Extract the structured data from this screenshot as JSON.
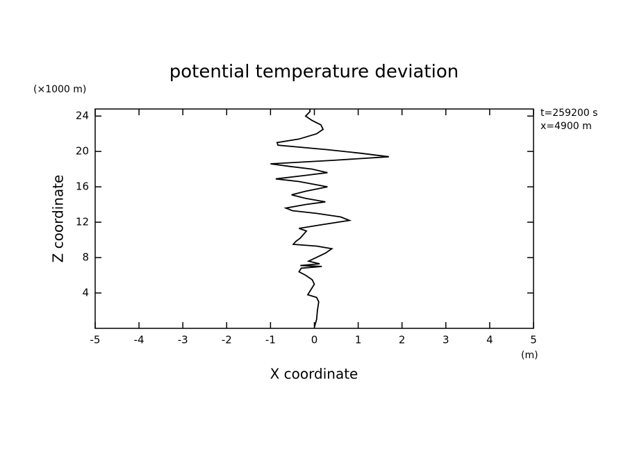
{
  "chart_data": {
    "type": "line",
    "title": "potential temperature deviation",
    "x_label": "X coordinate",
    "y_label": "Z coordinate",
    "x_unit": "(m)",
    "y_unit": "(×1000 m)",
    "annotations": [
      "t=259200 s",
      "x=4900 m"
    ],
    "color": "#000000",
    "xlim": [
      -5,
      5
    ],
    "xticks": [
      -5,
      -4,
      -3,
      -2,
      -1,
      0,
      1,
      2,
      3,
      4,
      5
    ],
    "ylim": [
      0,
      24.8
    ],
    "yticks": [
      4,
      8,
      12,
      16,
      20,
      24
    ],
    "x": [
      0.0,
      0.05,
      0.07,
      0.1,
      0.05,
      -0.15,
      -0.1,
      0,
      -0.05,
      -0.2,
      -0.35,
      -0.3,
      0.17,
      -0.32,
      0.12,
      -0.13,
      0.25,
      0.4,
      0.05,
      -0.48,
      -0.43,
      -0.32,
      -0.18,
      -0.35,
      0.15,
      0.8,
      0.6,
      0.05,
      -0.5,
      -0.65,
      -0.2,
      0.25,
      -0.2,
      -0.52,
      -0.2,
      0.3,
      -0.35,
      -0.88,
      -0.2,
      0.3,
      -0.05,
      -0.55,
      -1.0,
      0.45,
      1.7,
      1.05,
      0.3,
      -0.83,
      -0.85,
      -0.35,
      0.05,
      0.2,
      0.15,
      -0.05,
      -0.2,
      -0.1,
      -0.1
    ],
    "values": [
      0.1,
      1,
      2,
      3,
      3.5,
      3.8,
      4.2,
      5,
      5.5,
      6,
      6.4,
      6.8,
      7.0,
      7.1,
      7.3,
      7.6,
      8.5,
      9.0,
      9.3,
      9.5,
      9.8,
      10.2,
      11.0,
      11.3,
      11.7,
      12.2,
      12.6,
      13.0,
      13.3,
      13.6,
      14.0,
      14.3,
      14.7,
      15.1,
      15.5,
      16.0,
      16.6,
      16.9,
      17.3,
      17.6,
      18.0,
      18.3,
      18.6,
      19.0,
      19.4,
      19.8,
      20.2,
      20.7,
      21.0,
      21.4,
      22.0,
      22.5,
      23.0,
      23.5,
      24.0,
      24.5,
      24.8
    ]
  }
}
